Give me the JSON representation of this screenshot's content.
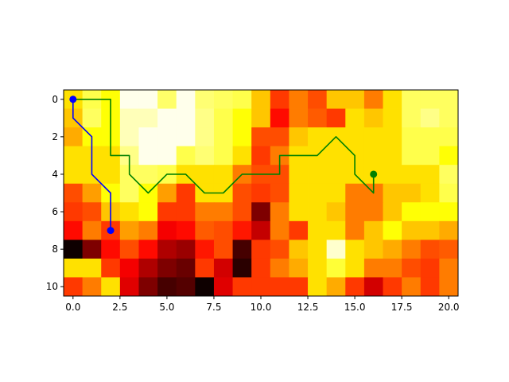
{
  "chart_data": {
    "type": "heatmap",
    "title": "",
    "xlabel": "",
    "ylabel": "",
    "colormap": "hot",
    "grid": false,
    "legend": "none",
    "xlim": [
      -0.5,
      20.5
    ],
    "ylim": [
      10.5,
      -0.5
    ],
    "x_ticks": [
      0.0,
      2.5,
      5.0,
      7.5,
      10.0,
      12.5,
      15.0,
      17.5,
      20.0
    ],
    "x_tick_labels": [
      "0.0",
      "2.5",
      "5.0",
      "7.5",
      "10.0",
      "12.5",
      "15.0",
      "17.5",
      "20.0"
    ],
    "y_ticks": [
      0,
      2,
      4,
      6,
      8,
      10
    ],
    "y_tick_labels": [
      "0",
      "2",
      "4",
      "6",
      "8",
      "10"
    ],
    "rows": 11,
    "cols": 21,
    "z": [
      [
        0.7,
        0.82,
        0.75,
        0.98,
        0.98,
        0.85,
        0.98,
        0.86,
        0.84,
        0.82,
        0.66,
        0.45,
        0.55,
        0.48,
        0.66,
        0.66,
        0.55,
        0.7,
        0.84,
        0.84,
        0.84
      ],
      [
        0.66,
        0.84,
        0.75,
        0.93,
        0.93,
        0.98,
        0.98,
        0.88,
        0.82,
        0.75,
        0.66,
        0.38,
        0.55,
        0.5,
        0.45,
        0.7,
        0.66,
        0.7,
        0.84,
        0.88,
        0.84
      ],
      [
        0.62,
        0.75,
        0.75,
        0.93,
        0.98,
        0.98,
        0.98,
        0.88,
        0.82,
        0.75,
        0.48,
        0.48,
        0.66,
        0.7,
        0.7,
        0.7,
        0.7,
        0.7,
        0.82,
        0.82,
        0.82
      ],
      [
        0.7,
        0.7,
        0.7,
        0.88,
        0.98,
        0.98,
        0.82,
        0.86,
        0.82,
        0.7,
        0.45,
        0.55,
        0.7,
        0.7,
        0.7,
        0.7,
        0.7,
        0.7,
        0.82,
        0.82,
        0.75
      ],
      [
        0.7,
        0.7,
        0.7,
        0.84,
        0.84,
        0.82,
        0.7,
        0.7,
        0.7,
        0.55,
        0.48,
        0.48,
        0.7,
        0.7,
        0.7,
        0.7,
        0.7,
        0.7,
        0.7,
        0.7,
        0.84
      ],
      [
        0.48,
        0.6,
        0.75,
        0.84,
        0.75,
        0.6,
        0.45,
        0.7,
        0.7,
        0.48,
        0.45,
        0.48,
        0.7,
        0.7,
        0.7,
        0.55,
        0.55,
        0.66,
        0.66,
        0.7,
        0.82
      ],
      [
        0.45,
        0.48,
        0.66,
        0.7,
        0.75,
        0.45,
        0.45,
        0.55,
        0.55,
        0.48,
        0.18,
        0.55,
        0.7,
        0.7,
        0.66,
        0.55,
        0.55,
        0.66,
        0.75,
        0.75,
        0.75
      ],
      [
        0.38,
        0.55,
        0.45,
        0.6,
        0.55,
        0.35,
        0.38,
        0.5,
        0.48,
        0.4,
        0.28,
        0.55,
        0.45,
        0.7,
        0.7,
        0.55,
        0.66,
        0.75,
        0.66,
        0.66,
        0.62
      ],
      [
        0.02,
        0.18,
        0.38,
        0.48,
        0.38,
        0.25,
        0.22,
        0.4,
        0.48,
        0.1,
        0.45,
        0.48,
        0.66,
        0.7,
        0.95,
        0.7,
        0.66,
        0.62,
        0.55,
        0.48,
        0.5
      ],
      [
        0.7,
        0.7,
        0.45,
        0.35,
        0.25,
        0.18,
        0.15,
        0.45,
        0.3,
        0.06,
        0.45,
        0.55,
        0.62,
        0.7,
        0.8,
        0.7,
        0.55,
        0.55,
        0.48,
        0.45,
        0.55
      ],
      [
        0.45,
        0.55,
        0.7,
        0.32,
        0.18,
        0.1,
        0.12,
        0.02,
        0.32,
        0.45,
        0.45,
        0.45,
        0.45,
        0.7,
        0.62,
        0.45,
        0.3,
        0.45,
        0.55,
        0.45,
        0.55
      ]
    ],
    "series": [
      {
        "color": "#0000ff",
        "x": [
          0,
          0,
          1,
          1,
          2,
          2
        ],
        "y": [
          0,
          1,
          2,
          4,
          5,
          7
        ],
        "markers": [
          [
            0,
            0
          ],
          [
            2,
            7
          ]
        ]
      },
      {
        "color": "#008000",
        "x": [
          0,
          2,
          2,
          3,
          3,
          4,
          5,
          6,
          7,
          8,
          9,
          10,
          11,
          11,
          12,
          13,
          14,
          15,
          15,
          16,
          16
        ],
        "y": [
          0,
          0,
          3,
          3,
          4,
          5,
          4,
          4,
          5,
          5,
          4,
          4,
          4,
          3,
          3,
          3,
          2,
          3,
          4,
          5,
          4
        ],
        "markers": [
          [
            16,
            4
          ]
        ]
      }
    ]
  }
}
